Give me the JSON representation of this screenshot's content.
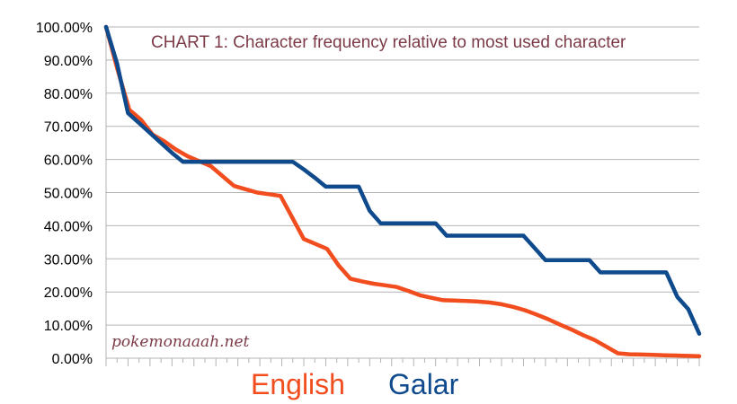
{
  "chart_data": {
    "type": "line",
    "title": "CHART 1: Character frequency relative to most used character",
    "xlabel": "",
    "ylabel": "",
    "ylim": [
      0,
      100
    ],
    "ytick_labels": [
      "0.00%",
      "10.00%",
      "20.00%",
      "30.00%",
      "40.00%",
      "50.00%",
      "60.00%",
      "70.00%",
      "80.00%",
      "90.00%",
      "100.00%"
    ],
    "grid": true,
    "legend": "bottom",
    "series": [
      {
        "name": "English",
        "color": "#f24d1e",
        "values": [
          100,
          87,
          75,
          72,
          67.5,
          65.5,
          63,
          61,
          59.5,
          58,
          55,
          52,
          51,
          50,
          49.5,
          49,
          42.5,
          36,
          34.5,
          33,
          28,
          24,
          23.2,
          22.5,
          22,
          21.5,
          20.3,
          19,
          18.2,
          17.5,
          17.4,
          17.3,
          17.1,
          16.8,
          16.3,
          15.5,
          14.5,
          13.2,
          11.8,
          10.2,
          8.7,
          7,
          5.5,
          3.5,
          1.5,
          1.2,
          1.1,
          1,
          0.9,
          0.8,
          0.7,
          0.6
        ]
      },
      {
        "name": "Galar",
        "color": "#0f4a8c",
        "values": [
          100,
          89,
          74,
          71,
          68,
          65,
          62,
          59.3,
          59.3,
          59.3,
          59.3,
          59.3,
          59.3,
          59.3,
          59.3,
          59.3,
          59.3,
          59.3,
          57,
          54.5,
          51.8,
          51.8,
          51.8,
          51.8,
          44.5,
          40.7,
          40.7,
          40.7,
          40.7,
          40.7,
          40.7,
          37,
          37,
          37,
          37,
          37,
          37,
          37,
          37,
          33.3,
          29.6,
          29.6,
          29.6,
          29.6,
          29.6,
          25.9,
          25.9,
          25.9,
          25.9,
          25.9,
          25.9,
          25.9,
          18.5,
          14.8,
          7.4
        ]
      }
    ]
  },
  "watermark": "pokemonaaah.net",
  "colors": {
    "title": "#7b3a46",
    "watermark": "#7b3a46",
    "grid": "#b3b3b3",
    "axis": "#b3b3b3"
  }
}
